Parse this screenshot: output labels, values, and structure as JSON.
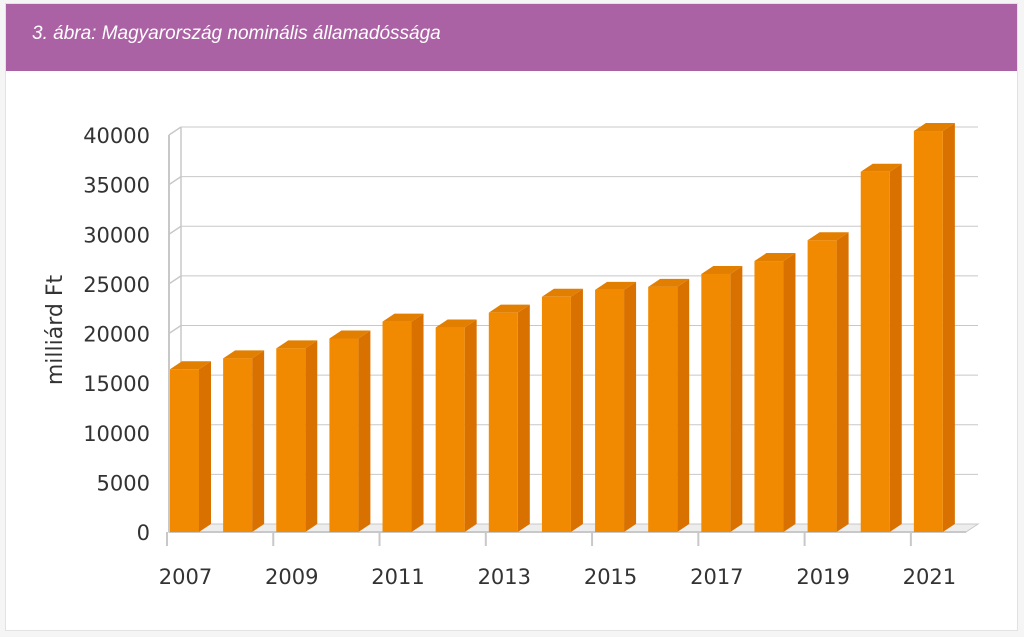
{
  "header": {
    "title": "3. ábra: Magyarország nominális államadóssága"
  },
  "colors": {
    "header_bg": "#ab62a4",
    "bar_front": "#f18a00",
    "bar_side": "#d97100",
    "bar_top": "#e27f00",
    "grid": "#c8c8c8",
    "axis_text": "#333333"
  },
  "chart_data": {
    "type": "bar",
    "style": "3d-column",
    "title": "",
    "xlabel": "",
    "ylabel": "milliárd Ft",
    "ylim": [
      0,
      40000
    ],
    "yticks": [
      0,
      5000,
      10000,
      15000,
      20000,
      25000,
      30000,
      35000,
      40000
    ],
    "xtick_labels": [
      "2007",
      "2009",
      "2011",
      "2013",
      "2015",
      "2017",
      "2019",
      "2021"
    ],
    "grid": true,
    "categories": [
      "2007",
      "2008",
      "2009",
      "2010",
      "2011",
      "2012",
      "2013",
      "2014",
      "2015",
      "2016",
      "2017",
      "2018",
      "2019",
      "2020",
      "2021"
    ],
    "values": [
      16400,
      17500,
      18500,
      19500,
      21200,
      20600,
      22100,
      23700,
      24400,
      24700,
      26000,
      27300,
      29400,
      36300,
      40400
    ]
  }
}
